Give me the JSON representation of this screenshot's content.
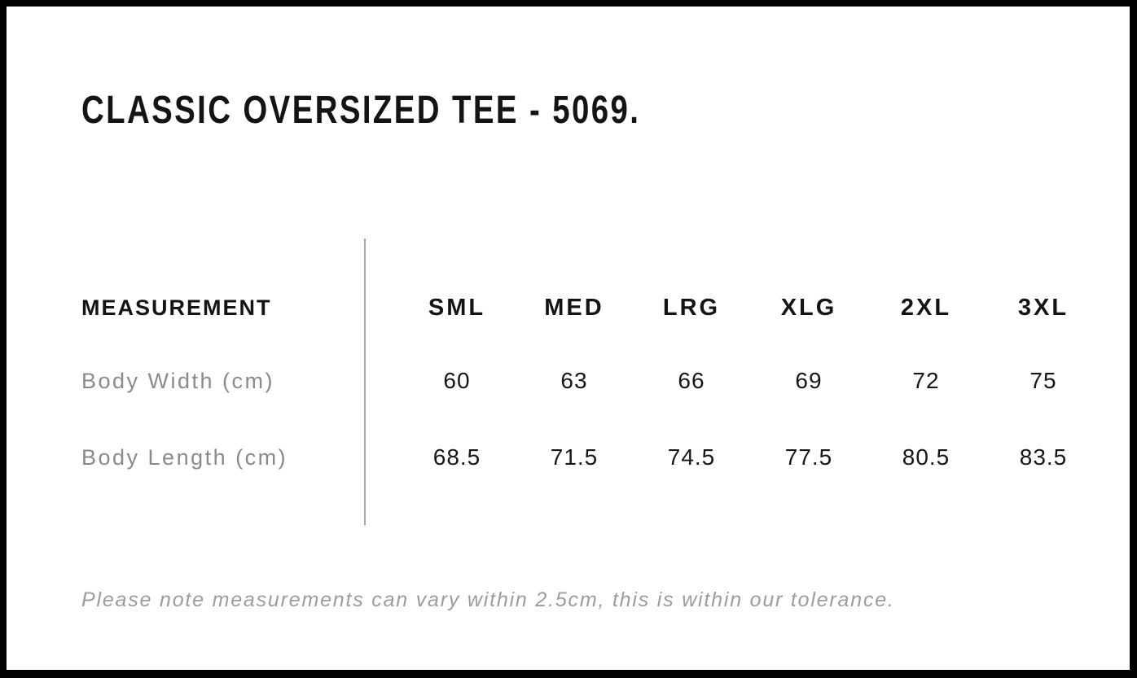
{
  "page": {
    "title": "CLASSIC OVERSIZED TEE - 5069."
  },
  "size_chart": {
    "measurement_header": "MEASUREMENT",
    "size_headers": [
      "SML",
      "MED",
      "LRG",
      "XLG",
      "2XL",
      "3XL"
    ],
    "rows": [
      {
        "label": "Body Width (cm)",
        "values": [
          "60",
          "63",
          "66",
          "69",
          "72",
          "75"
        ]
      },
      {
        "label": "Body Length (cm)",
        "values": [
          "68.5",
          "71.5",
          "74.5",
          "77.5",
          "80.5",
          "83.5"
        ]
      }
    ]
  },
  "footer": {
    "note": "Please note measurements can vary within 2.5cm, this is within our tolerance."
  },
  "colors": {
    "background": "#ffffff",
    "frame_border": "#020202",
    "text_primary": "#141414",
    "text_secondary": "#8a8a8a",
    "note_text": "#9c9c9c",
    "divider": "#a6a6a6"
  },
  "chart_data": {
    "type": "table",
    "title": "CLASSIC OVERSIZED TEE - 5069.",
    "columns": [
      "MEASUREMENT",
      "SML",
      "MED",
      "LRG",
      "XLG",
      "2XL",
      "3XL"
    ],
    "rows": [
      [
        "Body Width (cm)",
        60,
        63,
        66,
        69,
        72,
        75
      ],
      [
        "Body Length (cm)",
        68.5,
        71.5,
        74.5,
        77.5,
        80.5,
        83.5
      ]
    ],
    "annotations": [
      "Please note measurements can vary within 2.5cm, this is within our tolerance."
    ],
    "layout_hints": {
      "label_column_divider": "vertical gray rule between label column and size columns",
      "grid": "off",
      "frame": "solid black border around page"
    }
  }
}
